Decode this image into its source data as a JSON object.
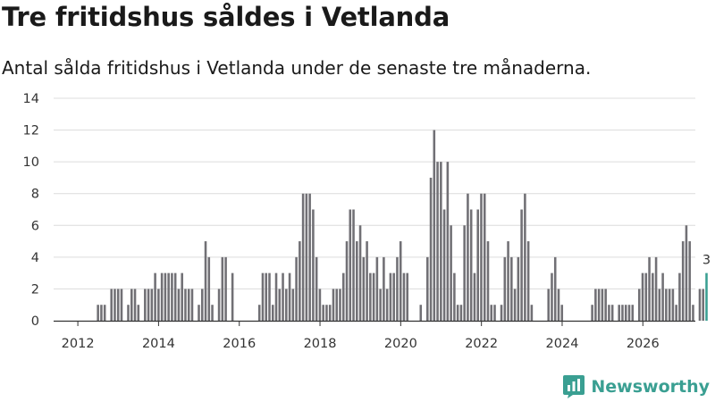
{
  "header": {
    "title": "Tre fritidshus såldes i Vetlanda",
    "subtitle": "Antal sålda fritidshus i Vetlanda under de senaste tre månaderna."
  },
  "brand": {
    "name": "Newsworthy",
    "color": "#3a9f92"
  },
  "chart_data": {
    "type": "bar",
    "title": "Tre fritidshus såldes i Vetlanda",
    "subtitle": "Antal sålda fritidshus i Vetlanda under de senaste tre månaderna.",
    "xlabel": "",
    "ylabel": "",
    "ylim": [
      0,
      14
    ],
    "yticks": [
      0,
      2,
      4,
      6,
      8,
      10,
      12,
      14
    ],
    "xlim": [
      2011.4,
      2027.3
    ],
    "xticks": [
      "2012",
      "2014",
      "2016",
      "2018",
      "2020",
      "2022",
      "2024",
      "2026"
    ],
    "grid": true,
    "bar_color": "#717075",
    "highlight_color": "#3a9f92",
    "start_year": 2011.5,
    "bar_step_years": 0.0833,
    "values": [
      0,
      0,
      0,
      0,
      0,
      0,
      0,
      0,
      0,
      0,
      0,
      0,
      1,
      1,
      1,
      0,
      2,
      2,
      2,
      2,
      0,
      1,
      2,
      2,
      1,
      0,
      2,
      2,
      2,
      3,
      2,
      3,
      3,
      3,
      3,
      3,
      2,
      3,
      2,
      2,
      2,
      0,
      1,
      2,
      5,
      4,
      1,
      0,
      2,
      4,
      4,
      0,
      3,
      0,
      0,
      0,
      0,
      0,
      0,
      0,
      1,
      3,
      3,
      3,
      1,
      3,
      2,
      3,
      2,
      3,
      2,
      4,
      5,
      8,
      8,
      8,
      7,
      4,
      2,
      1,
      1,
      1,
      2,
      2,
      2,
      3,
      5,
      7,
      7,
      5,
      6,
      4,
      5,
      3,
      3,
      4,
      2,
      4,
      2,
      3,
      3,
      4,
      5,
      3,
      3,
      0,
      0,
      0,
      1,
      0,
      4,
      9,
      12,
      10,
      10,
      7,
      10,
      6,
      3,
      1,
      1,
      6,
      8,
      7,
      3,
      7,
      8,
      8,
      5,
      1,
      1,
      0,
      1,
      4,
      5,
      4,
      2,
      4,
      7,
      8,
      5,
      1,
      0,
      0,
      0,
      0,
      2,
      3,
      4,
      2,
      1,
      0,
      0,
      0,
      0,
      0,
      0,
      0,
      0,
      1,
      2,
      2,
      2,
      2,
      1,
      1,
      0,
      1,
      1,
      1,
      1,
      1,
      0,
      2,
      3,
      3,
      4,
      3,
      4,
      2,
      3,
      2,
      2,
      2,
      1,
      3,
      5,
      6,
      5,
      1,
      0,
      2,
      2,
      3
    ],
    "highlight_index": 193,
    "highlight_value": 3,
    "highlight_label": "3"
  }
}
